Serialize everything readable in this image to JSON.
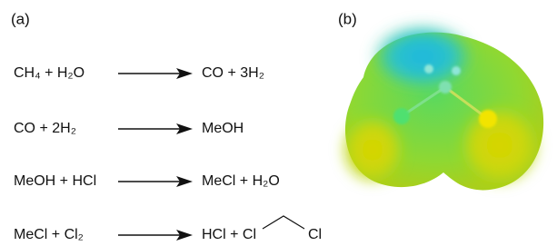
{
  "panels": {
    "a": "(a)",
    "b": "(b)"
  },
  "reactions": [
    {
      "left": "CH₄ + H₂O",
      "right": "CO + 3H₂"
    },
    {
      "left": "CO + 2H₂",
      "right": "MeOH"
    },
    {
      "left": "MeOH + HCl",
      "right": "MeCl + H₂O"
    },
    {
      "left": "MeCl + Cl₂",
      "right": "HCl + Cl",
      "right_tail": "Cl"
    }
  ]
}
